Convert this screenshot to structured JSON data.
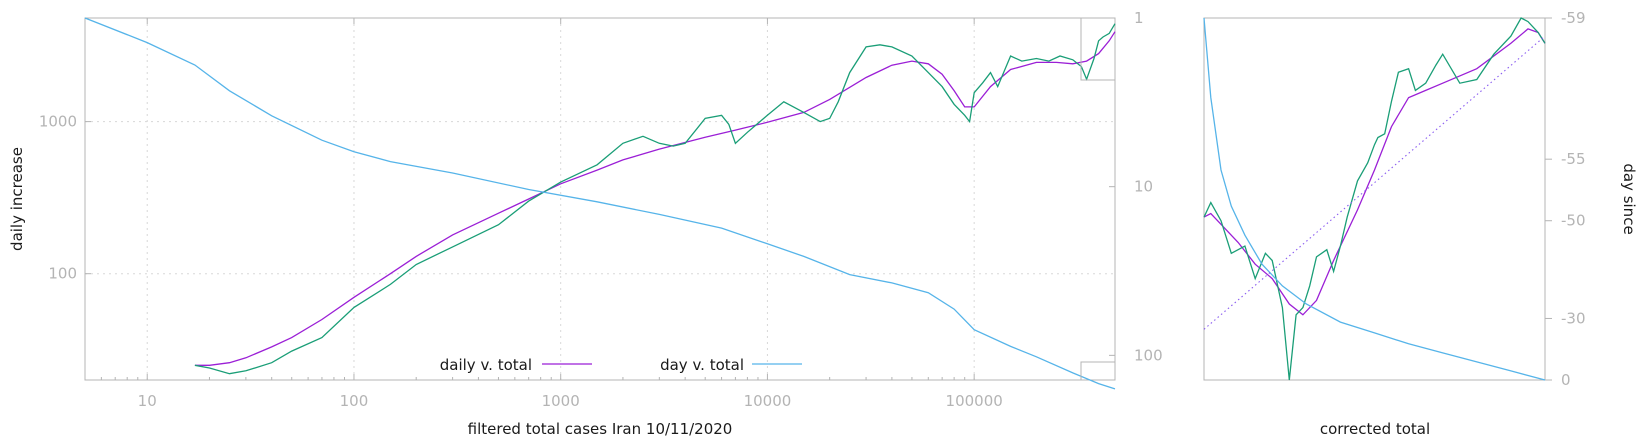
{
  "colors": {
    "daily_filtered": "#1a9e77",
    "daily_smoothed": "#9b1fd6",
    "day_total": "#56b4e9",
    "trend": "#8a5cf0",
    "axis": "#b4b4b4",
    "text": "#1a1a1a"
  },
  "chart_data": [
    {
      "type": "line",
      "title": "",
      "xlabel": "filtered total cases Iran 10/11/2020",
      "ylabel": "daily increase",
      "x_scale": "log",
      "y_scale": "log",
      "xlim": [
        5,
        480000
      ],
      "ylim": [
        20,
        4800
      ],
      "y2_scale": "log",
      "y2_reversed": true,
      "y2lim": [
        1,
        140
      ],
      "x_ticks": [
        "10",
        "100",
        "1000",
        "10000",
        "100000"
      ],
      "x_tick_values": [
        10,
        100,
        1000,
        10000,
        100000
      ],
      "y_ticks": [
        "100",
        "1000"
      ],
      "y_tick_values": [
        100,
        1000
      ],
      "y2_ticks": [
        "1",
        "10",
        "100"
      ],
      "y2_tick_values": [
        1,
        10,
        100
      ],
      "grid": true,
      "legend": {
        "placement": "bottom-center",
        "entries": [
          {
            "label": "daily v. total",
            "color": "#9b1fd6"
          },
          {
            "label": "day v. total",
            "color": "#56b4e9"
          }
        ]
      },
      "series": [
        {
          "name": "daily v. total",
          "axis": "y",
          "x": [
            17,
            20,
            25,
            30,
            40,
            50,
            70,
            100,
            150,
            200,
            300,
            500,
            700,
            1000,
            1500,
            2000,
            3000,
            5000,
            7000,
            10000,
            15000,
            20000,
            30000,
            40000,
            50000,
            60000,
            70000,
            80000,
            90000,
            100000,
            120000,
            150000,
            200000,
            250000,
            300000,
            350000,
            400000,
            450000,
            480000
          ],
          "y": [
            25,
            25,
            26,
            28,
            33,
            38,
            50,
            70,
            100,
            130,
            180,
            250,
            310,
            390,
            480,
            560,
            660,
            790,
            880,
            990,
            1150,
            1400,
            1950,
            2350,
            2500,
            2400,
            2050,
            1600,
            1250,
            1250,
            1700,
            2200,
            2450,
            2450,
            2400,
            2500,
            2800,
            3400,
            3900
          ]
        },
        {
          "axis": "y",
          "x": [
            17,
            20,
            25,
            30,
            40,
            50,
            70,
            100,
            150,
            200,
            300,
            500,
            700,
            1000,
            1500,
            2000,
            2500,
            3000,
            3500,
            4000,
            5000,
            6000,
            6500,
            7000,
            8000,
            10000,
            12000,
            15000,
            18000,
            20000,
            22000,
            25000,
            30000,
            35000,
            40000,
            50000,
            60000,
            70000,
            80000,
            90000,
            95000,
            100000,
            110000,
            120000,
            130000,
            150000,
            170000,
            200000,
            230000,
            260000,
            300000,
            330000,
            350000,
            380000,
            400000,
            420000,
            450000,
            480000
          ],
          "y": [
            25,
            24,
            22,
            23,
            26,
            31,
            38,
            60,
            85,
            115,
            150,
            210,
            300,
            400,
            520,
            720,
            800,
            720,
            690,
            720,
            1050,
            1100,
            960,
            720,
            850,
            1100,
            1350,
            1150,
            1000,
            1050,
            1350,
            2100,
            3100,
            3200,
            3100,
            2700,
            2100,
            1700,
            1300,
            1100,
            1000,
            1550,
            1800,
            2100,
            1700,
            2700,
            2500,
            2600,
            2500,
            2700,
            2550,
            2300,
            1900,
            2600,
            3400,
            3600,
            3800,
            4400
          ]
        },
        {
          "name": "day v. total",
          "axis": "y2",
          "x": [
            5,
            10,
            17,
            25,
            40,
            70,
            100,
            150,
            300,
            700,
            1500,
            3000,
            6000,
            10000,
            15000,
            25000,
            40000,
            60000,
            80000,
            100000,
            150000,
            200000,
            300000,
            400000,
            480000
          ],
          "y": [
            1,
            1.4,
            1.9,
            2.7,
            3.8,
            5.3,
            6.2,
            7.1,
            8.3,
            10.4,
            12.3,
            14.6,
            17.6,
            21.8,
            25.9,
            33.2,
            37.2,
            42.5,
            53.2,
            70.5,
            88.5,
            102,
            127,
            147,
            158
          ]
        }
      ]
    },
    {
      "type": "line",
      "title": "",
      "xlabel": "corrected total",
      "ylabel": "day since",
      "y2_ticks": [
        "-59",
        "-55",
        "-50",
        "-30",
        "0"
      ],
      "grid": false,
      "series": [
        {
          "color_key": "daily_smoothed",
          "x": [
            0,
            0.02,
            0.05,
            0.1,
            0.15,
            0.2,
            0.25,
            0.29,
            0.33,
            0.38,
            0.45,
            0.5,
            0.55,
            0.6,
            0.65,
            0.7,
            0.8,
            0.9,
            0.95,
            0.98,
            1.0
          ],
          "y": [
            0.45,
            0.46,
            0.43,
            0.38,
            0.32,
            0.28,
            0.21,
            0.18,
            0.22,
            0.33,
            0.47,
            0.58,
            0.7,
            0.78,
            0.8,
            0.82,
            0.86,
            0.93,
            0.97,
            0.96,
            0.93
          ]
        },
        {
          "color_key": "daily_filtered",
          "x": [
            0,
            0.02,
            0.05,
            0.08,
            0.12,
            0.15,
            0.18,
            0.2,
            0.23,
            0.25,
            0.27,
            0.29,
            0.31,
            0.33,
            0.36,
            0.38,
            0.4,
            0.42,
            0.45,
            0.48,
            0.5,
            0.51,
            0.53,
            0.55,
            0.57,
            0.6,
            0.62,
            0.65,
            0.68,
            0.7,
            0.75,
            0.8,
            0.85,
            0.9,
            0.93,
            0.95,
            0.98,
            1.0
          ],
          "y": [
            0.45,
            0.49,
            0.44,
            0.35,
            0.37,
            0.28,
            0.35,
            0.33,
            0.2,
            0.0,
            0.18,
            0.2,
            0.26,
            0.34,
            0.36,
            0.3,
            0.37,
            0.45,
            0.55,
            0.6,
            0.65,
            0.67,
            0.68,
            0.77,
            0.85,
            0.86,
            0.8,
            0.82,
            0.87,
            0.9,
            0.82,
            0.83,
            0.9,
            0.95,
            1.0,
            0.99,
            0.96,
            0.93
          ]
        },
        {
          "color_key": "day_total",
          "x": [
            0,
            0.02,
            0.05,
            0.08,
            0.12,
            0.17,
            0.23,
            0.3,
            0.4,
            0.5,
            0.6,
            0.7,
            0.8,
            0.9,
            1.0
          ],
          "y": [
            1.0,
            0.78,
            0.58,
            0.48,
            0.4,
            0.32,
            0.26,
            0.21,
            0.16,
            0.13,
            0.1,
            0.075,
            0.05,
            0.025,
            0.0
          ]
        },
        {
          "color_key": "trend",
          "dashed": true,
          "x": [
            0,
            1.0
          ],
          "y": [
            0.14,
            0.95
          ]
        }
      ]
    }
  ]
}
